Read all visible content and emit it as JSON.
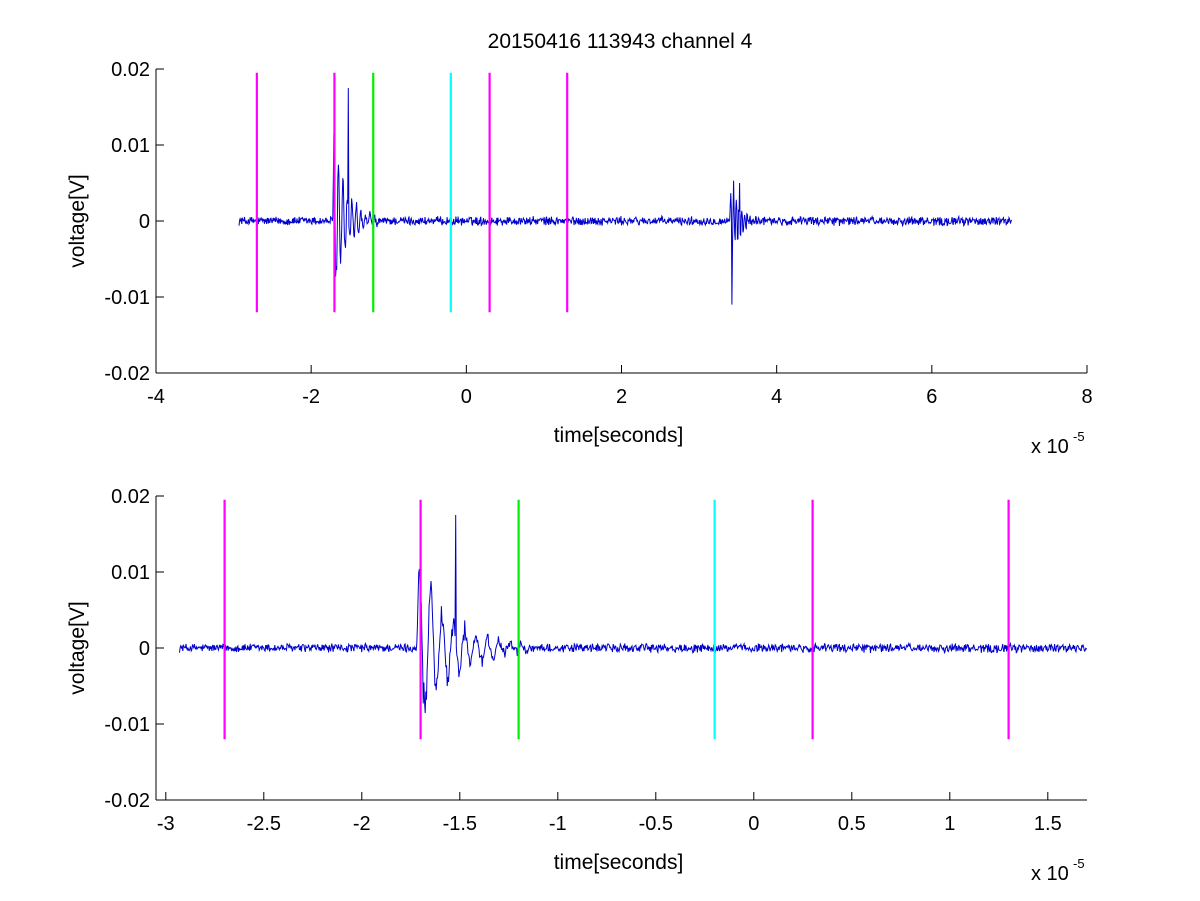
{
  "figure": {
    "title": "20150416 113943 channel 4"
  },
  "chart_data": [
    {
      "type": "line",
      "xlabel": "time[seconds]",
      "ylabel": "voltage[V]",
      "x_exponent_label": "x 10",
      "x_exponent": "-5",
      "xlim": [
        -4,
        8
      ],
      "ylim": [
        -0.02,
        0.02
      ],
      "x_ticks": [
        "-4",
        "-2",
        "0",
        "2",
        "4",
        "6",
        "8"
      ],
      "x_tick_values": [
        -4,
        -2,
        0,
        2,
        4,
        6,
        8
      ],
      "y_ticks": [
        "0.02",
        "0.01",
        "0",
        "-0.01",
        "-0.02"
      ],
      "y_tick_values": [
        0.02,
        0.01,
        0,
        -0.01,
        -0.02
      ],
      "grid": false,
      "signal": {
        "color": "#0000cc",
        "x_range": [
          -2.93,
          7.03
        ],
        "baseline_noise": 0.0005,
        "bursts": [
          {
            "x_start": -1.72,
            "x_end": -1.15,
            "peak": 0.0175,
            "trough": -0.0073
          },
          {
            "x_start": 3.4,
            "x_end": 3.75,
            "peak": 0.005,
            "trough": -0.011
          }
        ]
      },
      "markers": [
        {
          "x": -2.7,
          "color": "#ff00ff",
          "ymin": -0.012,
          "ymax": 0.0195
        },
        {
          "x": -1.7,
          "color": "#ff00ff",
          "ymin": -0.012,
          "ymax": 0.0195
        },
        {
          "x": -1.2,
          "color": "#00ee00",
          "ymin": -0.012,
          "ymax": 0.0195
        },
        {
          "x": -0.2,
          "color": "#00ffff",
          "ymin": -0.012,
          "ymax": 0.0195
        },
        {
          "x": 0.3,
          "color": "#ff00ff",
          "ymin": -0.012,
          "ymax": 0.0195
        },
        {
          "x": 1.3,
          "color": "#ff00ff",
          "ymin": -0.012,
          "ymax": 0.0195
        }
      ]
    },
    {
      "type": "line",
      "xlabel": "time[seconds]",
      "ylabel": "voltage[V]",
      "x_exponent_label": "x 10",
      "x_exponent": "-5",
      "xlim": [
        -3.05,
        1.7
      ],
      "ylim": [
        -0.02,
        0.02
      ],
      "x_ticks": [
        "-3",
        "-2.5",
        "-2",
        "-1.5",
        "-1",
        "-0.5",
        "0",
        "0.5",
        "1",
        "1.5"
      ],
      "x_tick_values": [
        -3,
        -2.5,
        -2,
        -1.5,
        -1,
        -0.5,
        0,
        0.5,
        1,
        1.5
      ],
      "y_ticks": [
        "0.02",
        "0.01",
        "0",
        "-0.01",
        "-0.02"
      ],
      "y_tick_values": [
        0.02,
        0.01,
        0,
        -0.01,
        -0.02
      ],
      "grid": false,
      "signal": {
        "color": "#0000cc",
        "x_range": [
          -2.93,
          1.7
        ],
        "baseline_noise": 0.0005,
        "bursts": [
          {
            "x_start": -1.72,
            "x_end": -1.15,
            "peak": 0.0175,
            "trough": -0.0073
          }
        ]
      },
      "markers": [
        {
          "x": -2.7,
          "color": "#ff00ff",
          "ymin": -0.012,
          "ymax": 0.0195
        },
        {
          "x": -1.7,
          "color": "#ff00ff",
          "ymin": -0.012,
          "ymax": 0.0195
        },
        {
          "x": -1.2,
          "color": "#00ee00",
          "ymin": -0.012,
          "ymax": 0.0195
        },
        {
          "x": -0.2,
          "color": "#00ffff",
          "ymin": -0.012,
          "ymax": 0.0195
        },
        {
          "x": 0.3,
          "color": "#ff00ff",
          "ymin": -0.012,
          "ymax": 0.0195
        },
        {
          "x": 1.3,
          "color": "#ff00ff",
          "ymin": -0.012,
          "ymax": 0.0195
        }
      ]
    }
  ]
}
